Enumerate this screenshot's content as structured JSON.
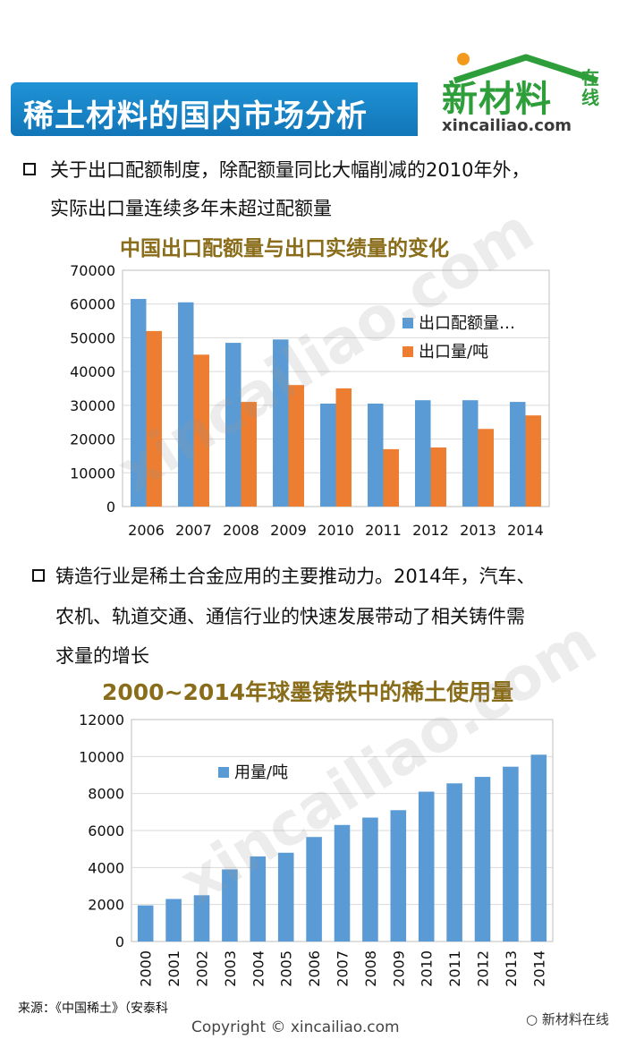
{
  "header": {
    "title": "稀土材料的国内市场分析"
  },
  "logo": {
    "main": "新材料",
    "side": "在线",
    "url": "xincailiao.com"
  },
  "bullets": [
    {
      "lines": [
        "关于出口配额制度，除配额量同比大幅削减的2010年外，",
        "实际出口量连续多年未超过配额量"
      ]
    },
    {
      "lines": [
        "铸造行业是稀土合金应用的主要推动力。2014年，汽车、",
        "农机、轨道交通、通信行业的快速发展带动了相关铸件需",
        "求量的增长"
      ]
    }
  ],
  "watermark": "xincailiao.com",
  "chart_data": [
    {
      "type": "bar",
      "title": "中国出口配额量与出口实绩量的变化",
      "categories": [
        "2006",
        "2007",
        "2008",
        "2009",
        "2010",
        "2011",
        "2012",
        "2013",
        "2014"
      ],
      "series": [
        {
          "name": "出口配额量…",
          "color": "#5b9bd5",
          "values": [
            61500,
            60500,
            48500,
            49500,
            30500,
            30500,
            31500,
            31500,
            31000
          ]
        },
        {
          "name": "出口量/吨",
          "color": "#ed7d31",
          "values": [
            52000,
            45000,
            31000,
            36000,
            35000,
            17000,
            17500,
            23000,
            27000
          ]
        }
      ],
      "ylim": [
        0,
        70000
      ],
      "yticks": [
        "0",
        "10000",
        "20000",
        "30000",
        "40000",
        "50000",
        "60000",
        "70000"
      ],
      "legend": "right",
      "grid": true
    },
    {
      "type": "bar",
      "title": "2000~2014年球墨铸铁中的稀土使用量",
      "categories": [
        "2000",
        "2001",
        "2002",
        "2003",
        "2004",
        "2005",
        "2006",
        "2007",
        "2008",
        "2009",
        "2010",
        "2011",
        "2012",
        "2013",
        "2014"
      ],
      "series": [
        {
          "name": "用量/吨",
          "color": "#5b9bd5",
          "values": [
            1950,
            2300,
            2500,
            3900,
            4600,
            4800,
            5650,
            6300,
            6700,
            7100,
            8100,
            8550,
            8900,
            9450,
            10100
          ]
        }
      ],
      "ylim": [
        0,
        12000
      ],
      "yticks": [
        "0",
        "2000",
        "4000",
        "6000",
        "8000",
        "10000",
        "12000"
      ],
      "legend": "top-left",
      "grid": true
    }
  ],
  "footer": {
    "source": "来源：《中国稀土》（安泰科",
    "copyright": "Copyright © xincailiao.com",
    "wechat": "新材料在线"
  }
}
